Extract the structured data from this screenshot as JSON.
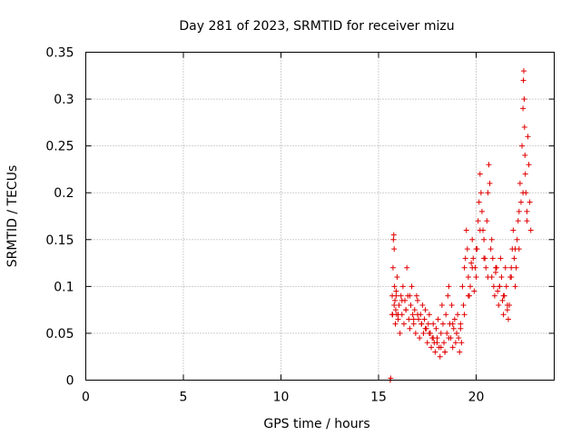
{
  "chart_data": {
    "type": "scatter",
    "title": "Day 281 of 2023, SRMTID for receiver mizu",
    "xlabel": "GPS time / hours",
    "ylabel": "SRMTID / TECUs",
    "xlim": [
      0,
      24
    ],
    "ylim": [
      0,
      0.35
    ],
    "x_ticks": [
      0,
      5,
      10,
      15,
      20
    ],
    "x_tick_labels": [
      "0",
      "5",
      "10",
      "15",
      "20"
    ],
    "y_ticks": [
      0,
      0.05,
      0.1,
      0.15,
      0.2,
      0.25,
      0.3,
      0.35
    ],
    "y_tick_labels": [
      "0",
      "0.05",
      "0.1",
      "0.15",
      "0.2",
      "0.25",
      "0.3",
      "0.35"
    ],
    "grid": true,
    "marker": "plus",
    "color": "#e00000",
    "series": [
      {
        "x": [
          15.6,
          15.62,
          15.7,
          15.72,
          15.74,
          15.76,
          15.78,
          15.8,
          15.82,
          15.84,
          15.86,
          15.88,
          15.9,
          15.92,
          15.95,
          16.0,
          16.05,
          16.1,
          16.15,
          16.2,
          16.25,
          16.3,
          16.35,
          16.4,
          16.45,
          16.5,
          16.55,
          16.6,
          16.65,
          16.7,
          16.75,
          16.8,
          16.85,
          16.9,
          16.95,
          17.0,
          17.05,
          17.1,
          17.15,
          17.2,
          17.25,
          17.3,
          17.35,
          17.4,
          17.45,
          17.5,
          17.55,
          17.6,
          17.65,
          17.7,
          17.75,
          17.8,
          17.85,
          17.9,
          17.95,
          18.0,
          18.05,
          18.1,
          18.15,
          18.2,
          18.25,
          18.3,
          18.35,
          18.4,
          18.45,
          18.5,
          18.55,
          18.6,
          18.65,
          18.7,
          18.75,
          18.8,
          18.85,
          18.9,
          18.95,
          19.0,
          19.05,
          19.1,
          19.15,
          19.2,
          19.25,
          19.3,
          19.35,
          19.4,
          19.45,
          19.5,
          19.55,
          19.6,
          19.65,
          19.7,
          19.75,
          19.8,
          19.85,
          19.9,
          19.95,
          20.0,
          20.05,
          20.1,
          20.15,
          20.2,
          20.25,
          20.3,
          20.35,
          20.4,
          20.45,
          20.5,
          20.55,
          20.6,
          20.65,
          20.7,
          20.75,
          20.8,
          20.85,
          20.9,
          20.95,
          21.0,
          21.05,
          21.1,
          21.15,
          21.2,
          21.25,
          21.3,
          21.35,
          21.4,
          21.45,
          21.5,
          21.55,
          21.6,
          21.65,
          21.7,
          21.75,
          21.8,
          21.85,
          21.9,
          21.95,
          22.0,
          22.05,
          22.1,
          22.15,
          22.2,
          22.25,
          22.3,
          22.35,
          22.4,
          22.42,
          22.44,
          22.46,
          22.48,
          22.5,
          22.52,
          22.55,
          22.6,
          22.65,
          22.7,
          22.75,
          22.8,
          15.7,
          15.8,
          15.9,
          16.0,
          16.2,
          16.4,
          16.6,
          16.8,
          17.0,
          17.2,
          17.4,
          17.6,
          17.8,
          18.0,
          18.2,
          18.4,
          18.6,
          18.8,
          19.0,
          19.2,
          19.4,
          19.6,
          19.8,
          20.0,
          20.2,
          20.4,
          20.6,
          20.8,
          21.0,
          21.2,
          21.4,
          21.6,
          21.8,
          22.0,
          22.2,
          22.4,
          22.6
        ],
        "y": [
          0.0,
          0.002,
          0.09,
          0.07,
          0.12,
          0.15,
          0.155,
          0.14,
          0.1,
          0.085,
          0.06,
          0.075,
          0.095,
          0.07,
          0.11,
          0.065,
          0.08,
          0.05,
          0.09,
          0.07,
          0.1,
          0.06,
          0.085,
          0.075,
          0.12,
          0.09,
          0.065,
          0.055,
          0.08,
          0.1,
          0.07,
          0.06,
          0.075,
          0.05,
          0.09,
          0.085,
          0.065,
          0.045,
          0.07,
          0.06,
          0.08,
          0.05,
          0.065,
          0.075,
          0.055,
          0.04,
          0.06,
          0.07,
          0.05,
          0.035,
          0.045,
          0.06,
          0.04,
          0.03,
          0.055,
          0.045,
          0.065,
          0.035,
          0.025,
          0.05,
          0.08,
          0.06,
          0.04,
          0.03,
          0.07,
          0.05,
          0.09,
          0.1,
          0.06,
          0.045,
          0.08,
          0.035,
          0.055,
          0.065,
          0.04,
          0.05,
          0.07,
          0.045,
          0.03,
          0.06,
          0.04,
          0.1,
          0.08,
          0.12,
          0.13,
          0.16,
          0.14,
          0.11,
          0.09,
          0.1,
          0.125,
          0.15,
          0.13,
          0.095,
          0.12,
          0.11,
          0.14,
          0.17,
          0.19,
          0.22,
          0.2,
          0.18,
          0.16,
          0.15,
          0.13,
          0.12,
          0.17,
          0.2,
          0.23,
          0.21,
          0.14,
          0.11,
          0.13,
          0.1,
          0.09,
          0.115,
          0.12,
          0.095,
          0.08,
          0.1,
          0.13,
          0.11,
          0.085,
          0.07,
          0.09,
          0.12,
          0.1,
          0.075,
          0.065,
          0.08,
          0.11,
          0.12,
          0.14,
          0.16,
          0.13,
          0.1,
          0.12,
          0.15,
          0.17,
          0.14,
          0.21,
          0.19,
          0.25,
          0.29,
          0.32,
          0.33,
          0.3,
          0.27,
          0.24,
          0.22,
          0.2,
          0.18,
          0.26,
          0.23,
          0.19,
          0.16,
          0.07,
          0.08,
          0.09,
          0.07,
          0.085,
          0.075,
          0.09,
          0.065,
          0.07,
          0.06,
          0.055,
          0.05,
          0.045,
          0.04,
          0.035,
          0.03,
          0.045,
          0.06,
          0.05,
          0.055,
          0.07,
          0.09,
          0.12,
          0.14,
          0.16,
          0.13,
          0.11,
          0.15,
          0.12,
          0.1,
          0.09,
          0.08,
          0.11,
          0.14,
          0.18,
          0.2,
          0.17
        ]
      }
    ]
  }
}
